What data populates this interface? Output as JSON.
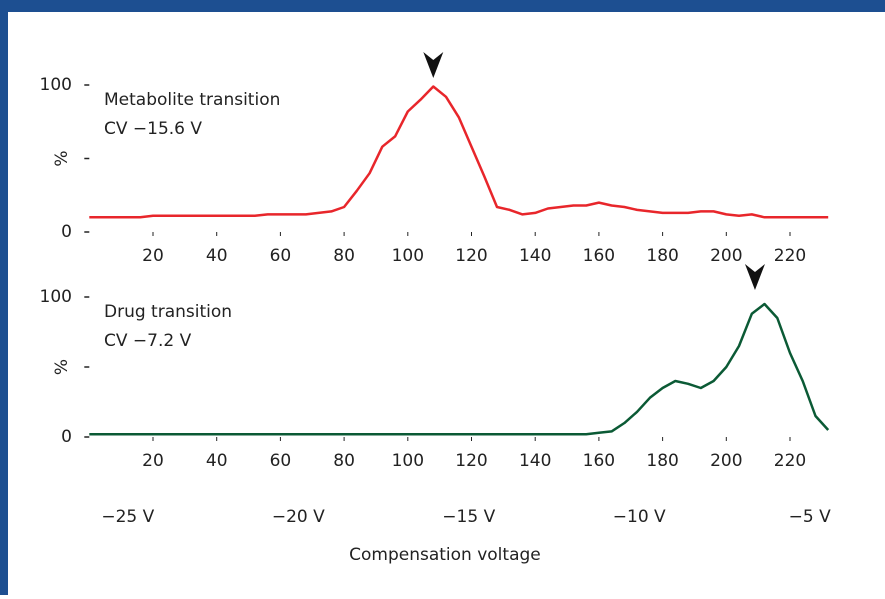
{
  "chart_data": [
    {
      "type": "line",
      "annotations": [
        "Metabolite transition",
        "CV −15.6 V"
      ],
      "peak_x": 108,
      "xlim": [
        0,
        234
      ],
      "xticks": [
        20,
        40,
        60,
        80,
        100,
        120,
        140,
        160,
        180,
        200,
        220
      ],
      "ylim": [
        0,
        100
      ],
      "yticks": [
        0,
        {
          "value": 50,
          "label": "%"
        },
        100
      ],
      "x": [
        0,
        4,
        8,
        12,
        16,
        20,
        24,
        28,
        32,
        36,
        40,
        44,
        48,
        52,
        56,
        60,
        64,
        68,
        72,
        76,
        80,
        84,
        88,
        92,
        96,
        100,
        104,
        108,
        112,
        116,
        120,
        124,
        128,
        132,
        136,
        140,
        144,
        148,
        152,
        156,
        160,
        164,
        168,
        172,
        176,
        180,
        184,
        188,
        192,
        196,
        200,
        204,
        208,
        212,
        216,
        220,
        224,
        228,
        232
      ],
      "series": [
        {
          "color": "#e8262b",
          "values": [
            10,
            10,
            10,
            10,
            10,
            11,
            11,
            11,
            11,
            11,
            11,
            11,
            11,
            11,
            12,
            12,
            12,
            12,
            13,
            14,
            17,
            28,
            40,
            58,
            65,
            82,
            90,
            99,
            92,
            78,
            58,
            38,
            17,
            15,
            12,
            13,
            16,
            17,
            18,
            18,
            20,
            18,
            17,
            15,
            14,
            13,
            13,
            13,
            14,
            14,
            12,
            11,
            12,
            10,
            10,
            10,
            10,
            10,
            10
          ]
        }
      ]
    },
    {
      "type": "line",
      "annotations": [
        "Drug transition",
        "CV −7.2 V"
      ],
      "peak_x": 209,
      "xlim": [
        0,
        234
      ],
      "xticks": [
        20,
        40,
        60,
        80,
        100,
        120,
        140,
        160,
        180,
        200,
        220
      ],
      "ylim": [
        0,
        100
      ],
      "yticks": [
        0,
        {
          "value": 50,
          "label": "%"
        },
        100
      ],
      "x2lim": [
        -26.13,
        -4.27
      ],
      "x2ticks": [
        {
          "value": -25,
          "label": "−25 V"
        },
        {
          "value": -20,
          "label": "−20 V"
        },
        {
          "value": -15,
          "label": "−15 V"
        },
        {
          "value": -10,
          "label": "−10 V"
        },
        {
          "value": -5,
          "label": "−5 V"
        }
      ],
      "xlabel": "Compensation voltage",
      "x": [
        0,
        4,
        8,
        12,
        16,
        20,
        24,
        28,
        32,
        36,
        40,
        44,
        48,
        52,
        56,
        60,
        64,
        68,
        72,
        76,
        80,
        84,
        88,
        92,
        96,
        100,
        104,
        108,
        112,
        116,
        120,
        124,
        128,
        132,
        136,
        140,
        144,
        148,
        152,
        156,
        160,
        164,
        168,
        172,
        176,
        180,
        184,
        188,
        192,
        196,
        200,
        204,
        208,
        212,
        216,
        220,
        224,
        228,
        232
      ],
      "series": [
        {
          "color": "#0b5a35",
          "values": [
            2,
            2,
            2,
            2,
            2,
            2,
            2,
            2,
            2,
            2,
            2,
            2,
            2,
            2,
            2,
            2,
            2,
            2,
            2,
            2,
            2,
            2,
            2,
            2,
            2,
            2,
            2,
            2,
            2,
            2,
            2,
            2,
            2,
            2,
            2,
            2,
            2,
            2,
            2,
            2,
            3,
            4,
            10,
            18,
            28,
            35,
            40,
            38,
            35,
            40,
            50,
            65,
            88,
            95,
            85,
            60,
            40,
            15,
            5
          ]
        }
      ]
    }
  ]
}
